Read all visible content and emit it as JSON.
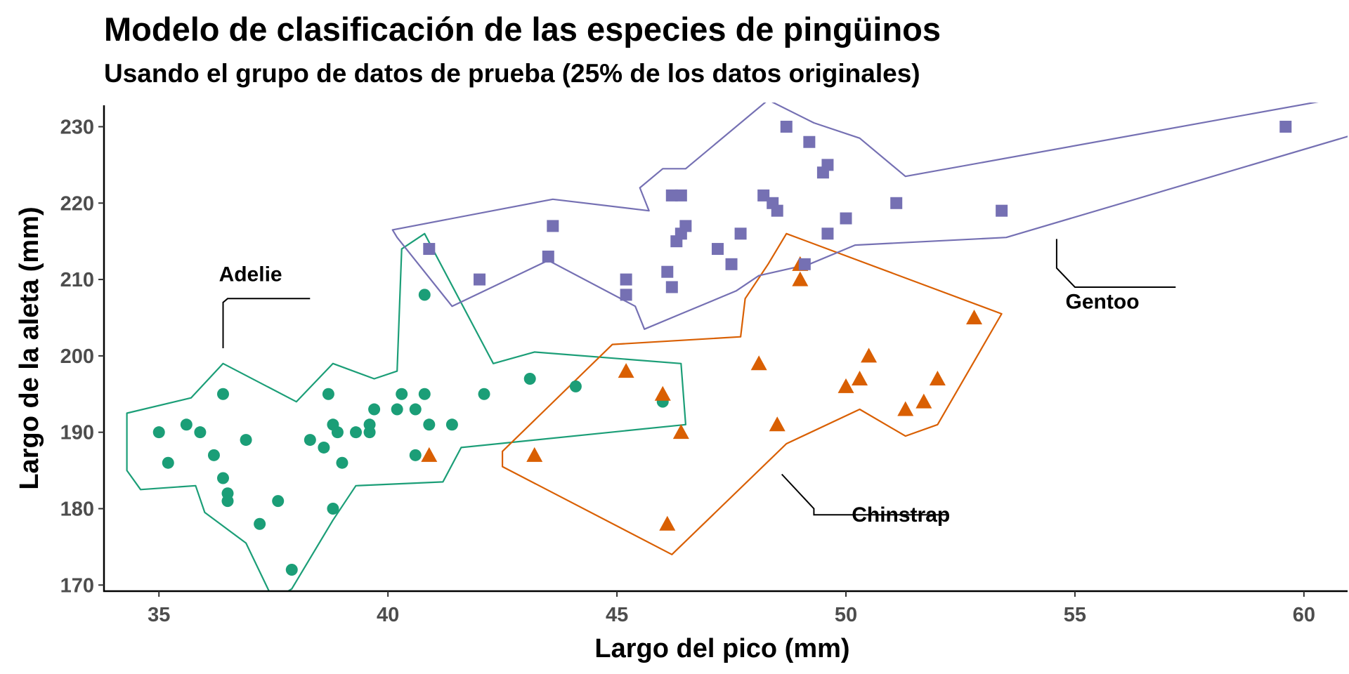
{
  "chart_data": {
    "type": "scatter",
    "title": "Modelo de clasificación de las especies de pingüinos",
    "subtitle": "Usando el grupo de datos de prueba (25% de los datos originales)",
    "xlabel": "Largo del pico (mm)",
    "ylabel": "Largo de la aleta (mm)",
    "xlim": [
      33.8,
      60.8
    ],
    "ylim": [
      169.2,
      232.8
    ],
    "xticks": [
      35,
      40,
      45,
      50,
      55,
      60
    ],
    "yticks": [
      170,
      180,
      190,
      200,
      210,
      220,
      230
    ],
    "grid": false,
    "legend": "none",
    "series": [
      {
        "name": "Adelie",
        "color": "#1b9e77",
        "marker": "circle",
        "points": [
          [
            35.0,
            190
          ],
          [
            35.2,
            186
          ],
          [
            35.6,
            191
          ],
          [
            35.9,
            190
          ],
          [
            36.2,
            187
          ],
          [
            36.4,
            195
          ],
          [
            36.4,
            184
          ],
          [
            36.5,
            182
          ],
          [
            36.5,
            181
          ],
          [
            36.9,
            189
          ],
          [
            37.2,
            178
          ],
          [
            37.6,
            181
          ],
          [
            37.9,
            172
          ],
          [
            38.3,
            189
          ],
          [
            38.6,
            188
          ],
          [
            38.7,
            195
          ],
          [
            38.8,
            191
          ],
          [
            38.9,
            190
          ],
          [
            38.8,
            180
          ],
          [
            39.0,
            186
          ],
          [
            39.3,
            190
          ],
          [
            39.6,
            190
          ],
          [
            39.6,
            191
          ],
          [
            39.7,
            193
          ],
          [
            40.2,
            193
          ],
          [
            40.3,
            195
          ],
          [
            40.6,
            193
          ],
          [
            40.6,
            187
          ],
          [
            40.8,
            195
          ],
          [
            40.9,
            191
          ],
          [
            40.8,
            208
          ],
          [
            41.4,
            191
          ],
          [
            42.1,
            195
          ],
          [
            43.1,
            197
          ],
          [
            44.1,
            196
          ],
          [
            46.0,
            194
          ]
        ]
      },
      {
        "name": "Chinstrap",
        "color": "#d95f02",
        "marker": "triangle",
        "points": [
          [
            40.9,
            187
          ],
          [
            43.2,
            187
          ],
          [
            45.2,
            198
          ],
          [
            46.0,
            195
          ],
          [
            46.1,
            178
          ],
          [
            46.4,
            190
          ],
          [
            48.1,
            199
          ],
          [
            48.5,
            191
          ],
          [
            49.0,
            212
          ],
          [
            49.0,
            210
          ],
          [
            50.0,
            196
          ],
          [
            50.3,
            197
          ],
          [
            50.5,
            200
          ],
          [
            51.3,
            193
          ],
          [
            51.7,
            194
          ],
          [
            52.0,
            197
          ],
          [
            52.8,
            205
          ]
        ]
      },
      {
        "name": "Gentoo",
        "color": "#7570b3",
        "marker": "square",
        "points": [
          [
            40.9,
            214
          ],
          [
            42.0,
            210
          ],
          [
            43.5,
            213
          ],
          [
            43.6,
            217
          ],
          [
            45.2,
            210
          ],
          [
            45.2,
            208
          ],
          [
            46.1,
            211
          ],
          [
            46.2,
            221
          ],
          [
            46.2,
            209
          ],
          [
            46.4,
            221
          ],
          [
            46.3,
            215
          ],
          [
            46.4,
            216
          ],
          [
            46.5,
            217
          ],
          [
            47.2,
            214
          ],
          [
            47.5,
            212
          ],
          [
            47.7,
            216
          ],
          [
            48.2,
            221
          ],
          [
            48.4,
            220
          ],
          [
            48.5,
            219
          ],
          [
            48.7,
            230
          ],
          [
            49.1,
            212
          ],
          [
            49.2,
            228
          ],
          [
            49.5,
            224
          ],
          [
            49.6,
            225
          ],
          [
            49.6,
            216
          ],
          [
            50.0,
            218
          ],
          [
            51.1,
            220
          ],
          [
            53.4,
            219
          ],
          [
            59.6,
            230
          ]
        ]
      }
    ],
    "hulls": [
      {
        "name": "Adelie",
        "color": "#1b9e77",
        "points": [
          [
            34.3,
            192.5
          ],
          [
            35.7,
            194.5
          ],
          [
            36.4,
            199
          ],
          [
            38.0,
            194
          ],
          [
            38.8,
            199
          ],
          [
            39.7,
            197
          ],
          [
            40.2,
            198
          ],
          [
            40.3,
            214
          ],
          [
            40.8,
            216
          ],
          [
            42.3,
            199
          ],
          [
            43.2,
            200.5
          ],
          [
            46.4,
            199
          ],
          [
            46.5,
            191
          ],
          [
            41.6,
            188
          ],
          [
            41.2,
            183.5
          ],
          [
            39.3,
            183
          ],
          [
            38.8,
            178.5
          ],
          [
            37.9,
            169.5
          ],
          [
            37.5,
            168
          ],
          [
            36.9,
            175.5
          ],
          [
            36.0,
            179.5
          ],
          [
            35.8,
            183
          ],
          [
            34.6,
            182.5
          ],
          [
            34.3,
            185
          ]
        ]
      },
      {
        "name": "Chinstrap",
        "color": "#d95f02",
        "points": [
          [
            42.5,
            187.5
          ],
          [
            44.9,
            201.5
          ],
          [
            47.7,
            202.5
          ],
          [
            47.8,
            207.5
          ],
          [
            48.3,
            212
          ],
          [
            48.7,
            216
          ],
          [
            53.4,
            205.5
          ],
          [
            52.0,
            191
          ],
          [
            51.3,
            189.5
          ],
          [
            50.3,
            193
          ],
          [
            48.7,
            188.5
          ],
          [
            46.2,
            174
          ],
          [
            42.5,
            185.5
          ]
        ]
      },
      {
        "name": "Gentoo",
        "color": "#7570b3",
        "points": [
          [
            40.1,
            216.5
          ],
          [
            43.6,
            220.5
          ],
          [
            45.7,
            219
          ],
          [
            45.5,
            222
          ],
          [
            46.0,
            224.5
          ],
          [
            46.5,
            224.5
          ],
          [
            48.3,
            233.5
          ],
          [
            49.3,
            230.5
          ],
          [
            50.3,
            228.5
          ],
          [
            51.3,
            223.5
          ],
          [
            61.0,
            234
          ],
          [
            61.0,
            228.8
          ],
          [
            53.5,
            215.5
          ],
          [
            50.2,
            214.5
          ],
          [
            49.2,
            212
          ],
          [
            48.1,
            210.5
          ],
          [
            47.6,
            208.5
          ],
          [
            46.4,
            205.5
          ],
          [
            45.6,
            203.5
          ],
          [
            45.4,
            206.5
          ],
          [
            43.5,
            212.5
          ],
          [
            41.4,
            206.5
          ],
          [
            40.2,
            215.5
          ]
        ]
      }
    ],
    "annotations": [
      {
        "text": "Adelie",
        "label_at": [
          37.0,
          209.8
        ],
        "line": [
          [
            38.3,
            207.5
          ],
          [
            36.5,
            207.5
          ],
          [
            36.4,
            207
          ],
          [
            36.4,
            201
          ]
        ]
      },
      {
        "text": "Chinstrap",
        "label_at": [
          51.2,
          178.3
        ],
        "line": [
          [
            52.2,
            179.2
          ],
          [
            49.3,
            179.2
          ],
          [
            49.3,
            180
          ],
          [
            48.6,
            184.5
          ]
        ]
      },
      {
        "text": "Gentoo",
        "label_at": [
          55.6,
          206.2
        ],
        "line": [
          [
            57.2,
            209
          ],
          [
            55.0,
            209
          ],
          [
            54.6,
            211.5
          ],
          [
            54.6,
            215.3
          ]
        ]
      }
    ]
  }
}
